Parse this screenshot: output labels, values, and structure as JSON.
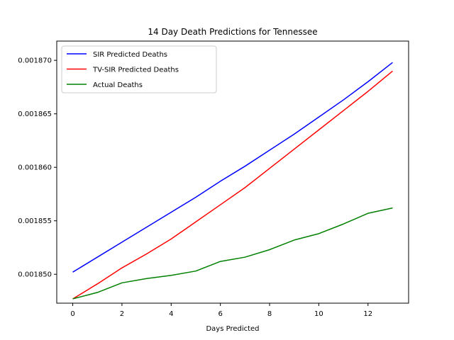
{
  "chart_data": {
    "type": "line",
    "title": "14 Day Death Predictions for Tennessee",
    "xlabel": "Days Predicted",
    "ylabel": "",
    "xlim": [
      -0.65,
      13.65
    ],
    "ylim": [
      0.0018473,
      0.0018718
    ],
    "xticks": [
      0,
      2,
      4,
      6,
      8,
      10,
      12
    ],
    "xtick_labels": [
      "0",
      "2",
      "4",
      "6",
      "8",
      "10",
      "12"
    ],
    "yticks": [
      0.00185,
      0.001855,
      0.00186,
      0.001865,
      0.00187
    ],
    "ytick_labels": [
      "0.001850",
      "0.001855",
      "0.001860",
      "0.001865",
      "0.001870"
    ],
    "legend_position": "upper-left",
    "grid": false,
    "x": [
      0,
      1,
      2,
      3,
      4,
      5,
      6,
      7,
      8,
      9,
      10,
      11,
      12,
      13
    ],
    "series": [
      {
        "name": "SIR Predicted Deaths",
        "color": "#0000ff",
        "values": [
          0.0018502,
          0.0018516,
          0.001853,
          0.0018544,
          0.0018558,
          0.0018572,
          0.0018587,
          0.0018601,
          0.0018616,
          0.0018631,
          0.0018647,
          0.0018663,
          0.001868,
          0.0018698
        ]
      },
      {
        "name": "TV-SIR Predicted Deaths",
        "color": "#ff0000",
        "values": [
          0.0018477,
          0.0018491,
          0.0018506,
          0.0018519,
          0.0018533,
          0.0018549,
          0.0018565,
          0.0018581,
          0.0018599,
          0.0018617,
          0.0018635,
          0.0018653,
          0.0018671,
          0.001869
        ]
      },
      {
        "name": "Actual Deaths",
        "color": "#008000",
        "values": [
          0.0018477,
          0.0018483,
          0.0018492,
          0.0018496,
          0.0018499,
          0.0018503,
          0.0018512,
          0.0018516,
          0.0018523,
          0.0018532,
          0.0018538,
          0.0018547,
          0.0018557,
          0.0018562
        ]
      }
    ]
  }
}
